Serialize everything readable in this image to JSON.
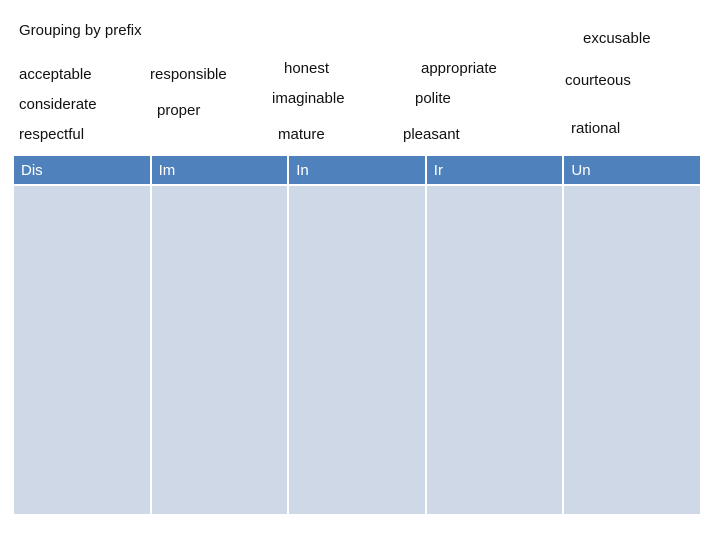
{
  "title": "Grouping by prefix",
  "words": [
    "acceptable",
    "considerate",
    "respectful",
    "responsible",
    "proper",
    "honest",
    "imaginable",
    "mature",
    "appropriate",
    "polite",
    "pleasant",
    "excusable",
    "courteous",
    "rational"
  ],
  "table": {
    "headers": [
      "Dis",
      "Im",
      "In",
      "Ir",
      "Un"
    ],
    "header_color": "#4f81bd",
    "cell_color": "#cfd8e6"
  }
}
